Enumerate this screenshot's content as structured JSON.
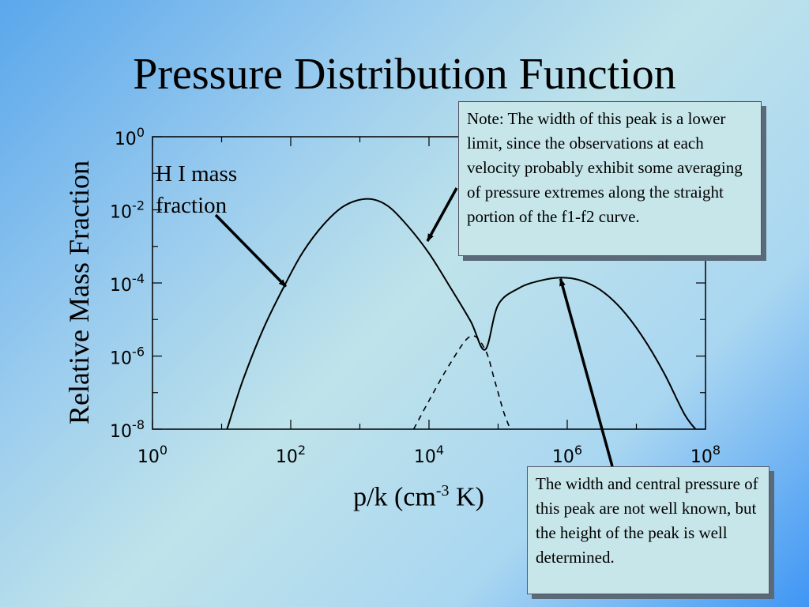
{
  "slide": {
    "title": "Pressure Distribution Function"
  },
  "annotations": {
    "hi_label": "H I mass fraction",
    "note_1": "Note: The width of this peak is a lower limit, since the observations at each velocity probably exhibit some averaging of pressure extremes along the straight portion of the f1-f2 curve.",
    "note_2": "The width and central pressure of this peak are not well known, but the height of the peak is well determined."
  },
  "chart_data": {
    "type": "line",
    "xlabel_base": "p/k (cm",
    "xlabel_exp": "-3",
    "xlabel_tail": " K)",
    "ylabel": "Relative Mass Fraction",
    "x_scale": "log",
    "y_scale": "log",
    "xlim": [
      1,
      100000000
    ],
    "ylim": [
      1e-08,
      1
    ],
    "x_ticks": [
      {
        "base": "10",
        "exp": "0"
      },
      {
        "base": "10",
        "exp": "2"
      },
      {
        "base": "10",
        "exp": "4"
      },
      {
        "base": "10",
        "exp": "6"
      },
      {
        "base": "10",
        "exp": "8"
      }
    ],
    "y_ticks": [
      {
        "base": "10",
        "exp": "0"
      },
      {
        "base": "10",
        "exp": "-2"
      },
      {
        "base": "10",
        "exp": "-4"
      },
      {
        "base": "10",
        "exp": "-6"
      },
      {
        "base": "10",
        "exp": "-8"
      }
    ],
    "grid": false,
    "series": [
      {
        "style": "solid",
        "x": [
          12,
          20,
          40,
          80,
          150,
          300,
          600,
          1300,
          2500,
          5000,
          10000,
          20000,
          40000,
          65000,
          100000,
          200000,
          400000,
          800000,
          1500000,
          3000000,
          6000000,
          12000000,
          25000000,
          50000000,
          80000000
        ],
        "y": [
          1e-08,
          2e-07,
          5.5e-06,
          8e-05,
          0.0007,
          0.004,
          0.013,
          0.02,
          0.013,
          0.0035,
          0.00065,
          8e-05,
          9e-06,
          1.5e-06,
          2.5e-05,
          7.2e-05,
          0.000115,
          0.00014,
          0.00012,
          6.5e-05,
          2e-05,
          3.6e-06,
          3.5e-07,
          2.5e-08,
          8e-09
        ]
      },
      {
        "style": "dashed",
        "x": [
          6000,
          10000,
          20000,
          40000,
          65000,
          90000,
          120000,
          150000
        ],
        "y": [
          1e-08,
          6e-08,
          6e-07,
          3.5e-06,
          1.5e-06,
          2e-07,
          3e-08,
          1e-08
        ]
      }
    ],
    "arrows": [
      {
        "target": "H I mass fraction",
        "x": 85,
        "y": 8e-05
      },
      {
        "target": "note 1",
        "x": 9500,
        "y": 0.0014
      },
      {
        "target": "note 2",
        "x": 800000,
        "y": 0.00013
      }
    ]
  }
}
